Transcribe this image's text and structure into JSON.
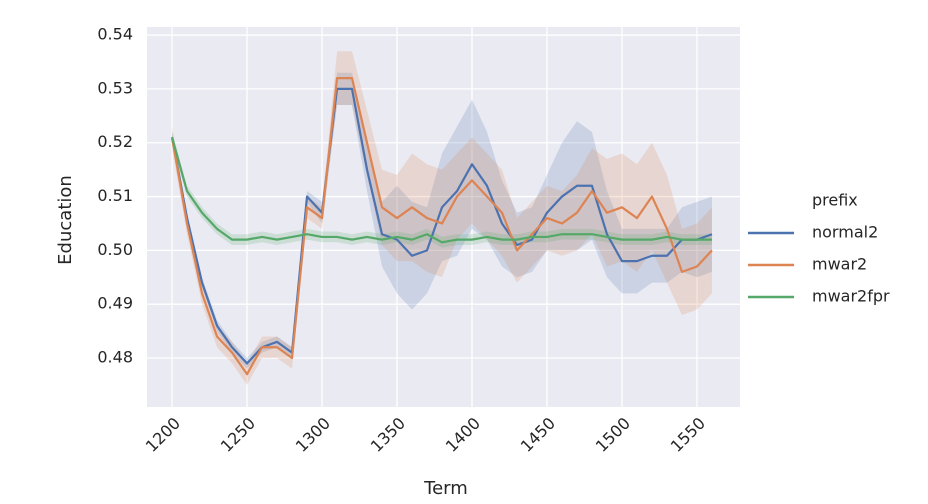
{
  "chart_data": {
    "type": "line",
    "x_label": "Term",
    "y_label": "Education",
    "x": [
      1200,
      1210,
      1220,
      1230,
      1240,
      1250,
      1260,
      1270,
      1280,
      1290,
      1300,
      1310,
      1320,
      1330,
      1340,
      1350,
      1360,
      1370,
      1380,
      1390,
      1400,
      1410,
      1420,
      1430,
      1440,
      1450,
      1460,
      1470,
      1480,
      1490,
      1500,
      1510,
      1520,
      1530,
      1540,
      1550,
      1560
    ],
    "series": [
      {
        "name": "normal2",
        "color": "#4c72b0",
        "values": [
          0.521,
          0.506,
          0.494,
          0.486,
          0.482,
          0.479,
          0.482,
          0.483,
          0.481,
          0.51,
          0.507,
          0.53,
          0.53,
          0.515,
          0.503,
          0.502,
          0.499,
          0.5,
          0.508,
          0.511,
          0.516,
          0.512,
          0.505,
          0.501,
          0.502,
          0.507,
          0.51,
          0.512,
          0.512,
          0.503,
          0.498,
          0.498,
          0.499,
          0.499,
          0.502,
          0.502,
          0.503
        ],
        "ci_lower": [
          0.52,
          0.505,
          0.493,
          0.485,
          0.481,
          0.478,
          0.481,
          0.482,
          0.48,
          0.509,
          0.505,
          0.527,
          0.527,
          0.511,
          0.497,
          0.492,
          0.489,
          0.492,
          0.498,
          0.499,
          0.504,
          0.502,
          0.497,
          0.495,
          0.496,
          0.5,
          0.5,
          0.5,
          0.502,
          0.495,
          0.492,
          0.492,
          0.494,
          0.494,
          0.496,
          0.495,
          0.496
        ],
        "ci_upper": [
          0.522,
          0.507,
          0.495,
          0.487,
          0.483,
          0.48,
          0.483,
          0.484,
          0.482,
          0.511,
          0.509,
          0.533,
          0.533,
          0.519,
          0.509,
          0.512,
          0.509,
          0.508,
          0.518,
          0.523,
          0.528,
          0.522,
          0.513,
          0.507,
          0.508,
          0.514,
          0.52,
          0.524,
          0.522,
          0.511,
          0.504,
          0.504,
          0.504,
          0.504,
          0.508,
          0.509,
          0.51
        ]
      },
      {
        "name": "mwar2",
        "color": "#dd8452",
        "values": [
          0.521,
          0.505,
          0.492,
          0.484,
          0.481,
          0.477,
          0.482,
          0.482,
          0.48,
          0.508,
          0.506,
          0.532,
          0.532,
          0.52,
          0.508,
          0.506,
          0.508,
          0.506,
          0.505,
          0.51,
          0.513,
          0.51,
          0.507,
          0.5,
          0.503,
          0.506,
          0.505,
          0.507,
          0.511,
          0.507,
          0.508,
          0.506,
          0.51,
          0.504,
          0.496,
          0.497,
          0.5
        ],
        "ci_lower": [
          0.519,
          0.503,
          0.49,
          0.482,
          0.479,
          0.475,
          0.48,
          0.48,
          0.478,
          0.506,
          0.504,
          0.527,
          0.527,
          0.514,
          0.501,
          0.498,
          0.498,
          0.496,
          0.495,
          0.502,
          0.505,
          0.502,
          0.499,
          0.494,
          0.497,
          0.5,
          0.499,
          0.5,
          0.503,
          0.497,
          0.498,
          0.496,
          0.5,
          0.494,
          0.488,
          0.489,
          0.492
        ],
        "ci_upper": [
          0.523,
          0.507,
          0.494,
          0.486,
          0.483,
          0.479,
          0.484,
          0.484,
          0.482,
          0.51,
          0.508,
          0.537,
          0.537,
          0.526,
          0.515,
          0.514,
          0.518,
          0.516,
          0.515,
          0.518,
          0.521,
          0.518,
          0.515,
          0.506,
          0.509,
          0.512,
          0.511,
          0.514,
          0.519,
          0.517,
          0.518,
          0.516,
          0.52,
          0.514,
          0.504,
          0.505,
          0.508
        ]
      },
      {
        "name": "mwar2fpr",
        "color": "#55a868",
        "values": [
          0.521,
          0.511,
          0.507,
          0.504,
          0.502,
          0.502,
          0.5025,
          0.502,
          0.5025,
          0.503,
          0.5025,
          0.5025,
          0.502,
          0.5025,
          0.502,
          0.5025,
          0.502,
          0.503,
          0.5015,
          0.502,
          0.502,
          0.5025,
          0.502,
          0.502,
          0.5025,
          0.5025,
          0.503,
          0.503,
          0.503,
          0.5025,
          0.502,
          0.502,
          0.502,
          0.5025,
          0.502,
          0.502,
          0.502
        ],
        "ci_lower": [
          0.52,
          0.51,
          0.506,
          0.503,
          0.501,
          0.501,
          0.5015,
          0.501,
          0.5015,
          0.502,
          0.5015,
          0.5015,
          0.501,
          0.5015,
          0.501,
          0.5015,
          0.501,
          0.502,
          0.5005,
          0.501,
          0.501,
          0.5015,
          0.501,
          0.501,
          0.5015,
          0.5015,
          0.502,
          0.502,
          0.502,
          0.5015,
          0.501,
          0.501,
          0.501,
          0.5015,
          0.501,
          0.501,
          0.501
        ],
        "ci_upper": [
          0.522,
          0.512,
          0.508,
          0.505,
          0.503,
          0.503,
          0.5035,
          0.503,
          0.5035,
          0.504,
          0.5035,
          0.5035,
          0.503,
          0.5035,
          0.503,
          0.5035,
          0.503,
          0.504,
          0.5025,
          0.503,
          0.503,
          0.5035,
          0.503,
          0.503,
          0.5035,
          0.5035,
          0.504,
          0.504,
          0.504,
          0.5035,
          0.503,
          0.503,
          0.503,
          0.5035,
          0.503,
          0.503,
          0.503
        ]
      }
    ],
    "legend_title": "prefix",
    "legend": "right",
    "xlim": [
      1183.3,
      1578.7
    ],
    "xticks": [
      1200,
      1250,
      1300,
      1350,
      1400,
      1450,
      1500,
      1550
    ],
    "ylim": [
      0.4709,
      0.5415
    ],
    "yticks": [
      0.48,
      0.49,
      {
        "value": 0.5,
        "label": "0.50"
      },
      0.51,
      0.52,
      0.53,
      0.54
    ],
    "grid": true
  }
}
